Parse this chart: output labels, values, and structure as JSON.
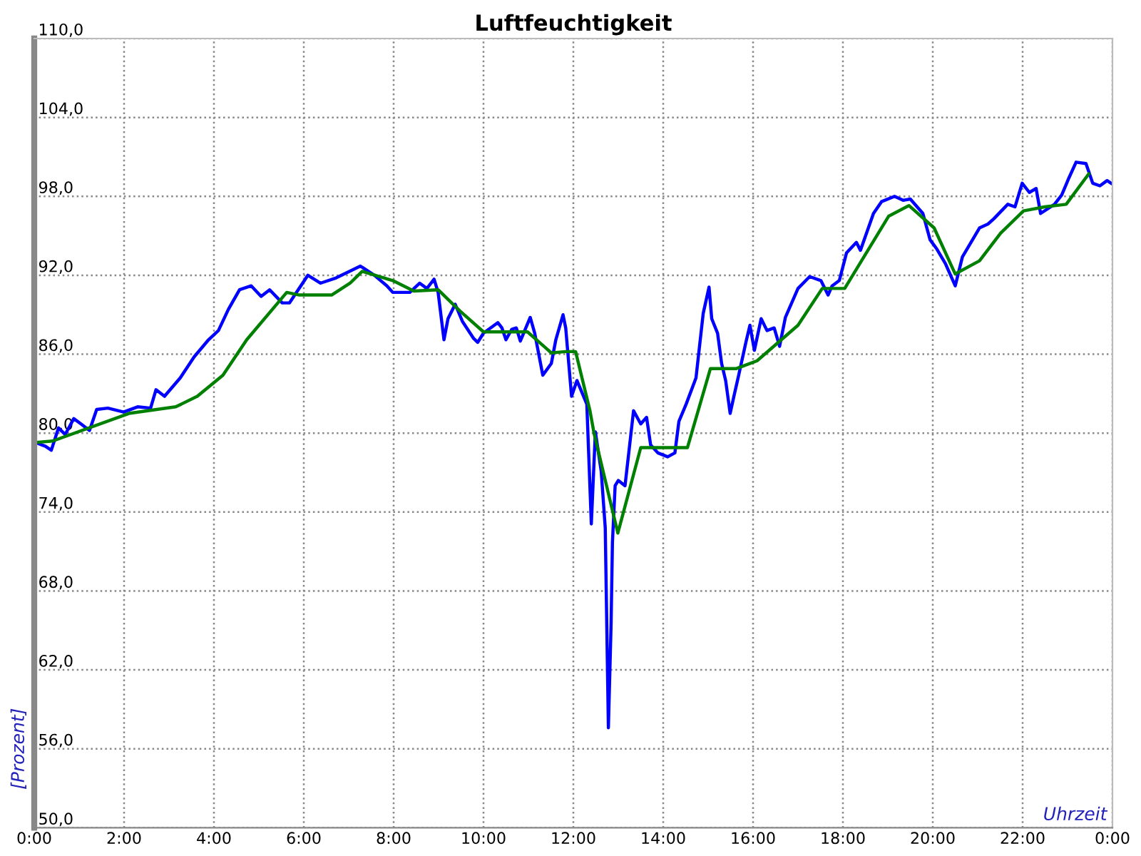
{
  "chart_data": {
    "type": "line",
    "title": "Luftfeuchtigkeit",
    "xlabel": "Uhrzeit",
    "ylabel": "[Prozent]",
    "xlim": [
      0,
      24
    ],
    "xticks": [
      {
        "value": 0,
        "label": "0:00"
      },
      {
        "value": 2,
        "label": "2:00"
      },
      {
        "value": 4,
        "label": "4:00"
      },
      {
        "value": 6,
        "label": "6:00"
      },
      {
        "value": 8,
        "label": "8:00"
      },
      {
        "value": 10,
        "label": "10:00"
      },
      {
        "value": 12,
        "label": "12:00"
      },
      {
        "value": 14,
        "label": "14:00"
      },
      {
        "value": 16,
        "label": "16:00"
      },
      {
        "value": 18,
        "label": "18:00"
      },
      {
        "value": 20,
        "label": "20:00"
      },
      {
        "value": 22,
        "label": "22:00"
      },
      {
        "value": 24,
        "label": "0:00"
      }
    ],
    "ylim": [
      50,
      110
    ],
    "yticks": [
      {
        "value": 50,
        "label": "50,0"
      },
      {
        "value": 56,
        "label": "56,0"
      },
      {
        "value": 62,
        "label": "62,0"
      },
      {
        "value": 68,
        "label": "68,0"
      },
      {
        "value": 74,
        "label": "74,0"
      },
      {
        "value": 80,
        "label": "80,0"
      },
      {
        "value": 86,
        "label": "86,0"
      },
      {
        "value": 92,
        "label": "92,0"
      },
      {
        "value": 98,
        "label": "98,0"
      },
      {
        "value": 104,
        "label": "104,0"
      },
      {
        "value": 110,
        "label": "110,0"
      }
    ],
    "grid": true,
    "legend": false,
    "marker": "none",
    "line_style": "solid",
    "series": [
      {
        "color": "#0000ff",
        "x": [
          0.02,
          0.25,
          0.38,
          0.54,
          0.69,
          0.88,
          1.04,
          1.23,
          1.39,
          1.64,
          1.99,
          2.3,
          2.59,
          2.71,
          2.9,
          3.25,
          3.56,
          3.88,
          4.1,
          4.32,
          4.57,
          4.83,
          5.05,
          5.24,
          5.52,
          5.68,
          6.09,
          6.37,
          6.72,
          7.26,
          7.57,
          7.85,
          7.98,
          8.36,
          8.58,
          8.74,
          8.9,
          8.99,
          9.12,
          9.21,
          9.37,
          9.53,
          9.78,
          9.87,
          10.0,
          10.32,
          10.41,
          10.5,
          10.63,
          10.73,
          10.82,
          11.04,
          11.14,
          11.32,
          11.51,
          11.61,
          11.77,
          11.83,
          11.89,
          11.96,
          12.08,
          12.3,
          12.4,
          12.49,
          12.62,
          12.71,
          12.78,
          12.84,
          12.87,
          12.93,
          13.0,
          13.15,
          13.25,
          13.34,
          13.5,
          13.63,
          13.72,
          13.88,
          14.1,
          14.26,
          14.35,
          14.51,
          14.73,
          14.89,
          15.02,
          15.08,
          15.21,
          15.3,
          15.39,
          15.49,
          15.58,
          15.68,
          15.84,
          15.93,
          16.03,
          16.18,
          16.31,
          16.47,
          16.59,
          16.72,
          17.0,
          17.26,
          17.51,
          17.67,
          17.76,
          17.92,
          18.08,
          18.3,
          18.39,
          18.68,
          18.86,
          19.15,
          19.34,
          19.5,
          19.78,
          19.94,
          20.09,
          20.28,
          20.5,
          20.66,
          21.04,
          21.23,
          21.36,
          21.67,
          21.83,
          21.99,
          22.15,
          22.3,
          22.4,
          22.71,
          22.87,
          23.03,
          23.19,
          23.41,
          23.56,
          23.72,
          23.88,
          23.97
        ],
        "values": [
          79.3,
          79.0,
          78.7,
          80.4,
          79.9,
          81.1,
          80.7,
          80.2,
          81.8,
          81.9,
          81.6,
          82.0,
          81.9,
          83.3,
          82.8,
          84.2,
          85.8,
          87.1,
          87.8,
          89.4,
          90.9,
          91.2,
          90.4,
          90.9,
          89.9,
          89.9,
          92.0,
          91.4,
          91.8,
          92.7,
          92.0,
          91.2,
          90.7,
          90.7,
          91.4,
          91.0,
          91.7,
          90.7,
          87.1,
          88.7,
          89.8,
          88.5,
          87.2,
          86.9,
          87.6,
          88.4,
          88.0,
          87.1,
          87.9,
          88.0,
          87.0,
          88.8,
          87.6,
          84.4,
          85.3,
          87.1,
          89.0,
          88.0,
          85.6,
          82.8,
          84.0,
          82.2,
          73.1,
          80.1,
          77.1,
          72.8,
          57.6,
          65.5,
          71.7,
          76.0,
          76.4,
          76.0,
          79.0,
          81.7,
          80.7,
          81.2,
          79.1,
          78.5,
          78.2,
          78.5,
          80.9,
          82.2,
          84.2,
          89.1,
          91.1,
          88.7,
          87.6,
          85.3,
          84.0,
          81.5,
          82.9,
          84.4,
          86.9,
          88.2,
          86.3,
          88.7,
          87.8,
          88.0,
          86.6,
          88.8,
          91.0,
          91.9,
          91.6,
          90.5,
          91.2,
          91.6,
          93.7,
          94.5,
          93.9,
          96.7,
          97.6,
          98.0,
          97.7,
          97.8,
          96.7,
          94.7,
          94.0,
          92.9,
          91.2,
          93.4,
          95.6,
          95.9,
          96.3,
          97.4,
          97.2,
          99.0,
          98.3,
          98.6,
          96.7,
          97.4,
          98.1,
          99.4,
          100.6,
          100.5,
          99.0,
          98.8,
          99.2,
          99.0
        ]
      },
      {
        "color": "#008000",
        "x": [
          0.05,
          0.41,
          2.11,
          3.15,
          3.63,
          4.2,
          4.73,
          5.62,
          5.9,
          6.62,
          7.03,
          7.3,
          7.98,
          8.45,
          8.99,
          9.47,
          10.0,
          10.98,
          11.51,
          11.83,
          12.05,
          12.37,
          12.46,
          12.99,
          13.5,
          14.54,
          15.05,
          15.62,
          16.09,
          17.0,
          17.54,
          18.04,
          19.02,
          19.47,
          20.03,
          20.5,
          21.04,
          21.51,
          22.02,
          22.49,
          22.97,
          23.47
        ],
        "values": [
          79.3,
          79.4,
          81.5,
          82.0,
          82.8,
          84.4,
          87.1,
          90.7,
          90.5,
          90.5,
          91.4,
          92.3,
          91.6,
          90.8,
          90.9,
          89.3,
          87.7,
          87.7,
          86.1,
          86.2,
          86.2,
          81.7,
          80.0,
          72.4,
          78.9,
          78.9,
          84.9,
          84.9,
          85.5,
          88.2,
          91.0,
          91.0,
          96.5,
          97.3,
          95.6,
          92.1,
          93.1,
          95.2,
          96.9,
          97.2,
          97.4,
          99.7
        ]
      }
    ]
  }
}
